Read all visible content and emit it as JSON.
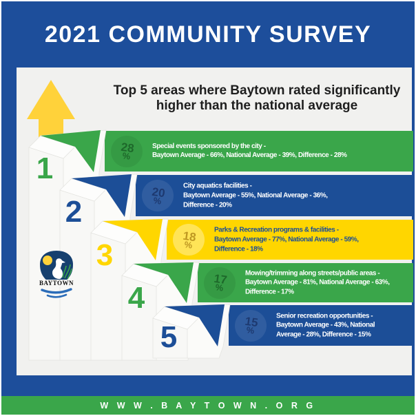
{
  "header": {
    "title": "2021 COMMUNITY SURVEY"
  },
  "intro": {
    "line1": "Top 5 areas where Baytown rated significantly",
    "line2": "higher than the national average"
  },
  "items": [
    {
      "rank": "1",
      "color": "green",
      "badge_value": "28",
      "badge_symbol": "%",
      "lines": [
        "Special events sponsored by the city -",
        "Baytown Average - 66%, National Average - 39%, Difference - 28%"
      ]
    },
    {
      "rank": "2",
      "color": "blue",
      "badge_value": "20",
      "badge_symbol": "%",
      "lines": [
        "City aquatics facilities -",
        "Baytown Average - 55%, National Average - 36%,",
        "Difference - 20%"
      ]
    },
    {
      "rank": "3",
      "color": "yellow",
      "badge_value": "18",
      "badge_symbol": "%",
      "lines": [
        "Parks & Recreation programs & facilities -",
        "Baytown Average - 77%, National Average - 59%,",
        "Difference - 18%"
      ]
    },
    {
      "rank": "4",
      "color": "green",
      "badge_value": "17",
      "badge_symbol": "%",
      "lines": [
        "Mowing/trimming along streets/public areas -",
        "Baytown Average - 81%, National Average - 63%,",
        "Difference - 17%"
      ]
    },
    {
      "rank": "5",
      "color": "blue",
      "badge_value": "15",
      "badge_symbol": "%",
      "lines": [
        "Senior recreation opportunities -",
        "Baytown Average - 43%, National",
        "Average - 28%, Difference - 15%"
      ]
    }
  ],
  "logo": {
    "text": "BAYTOWN"
  },
  "footer": {
    "url": "W W W . B A Y T O W N . O R G"
  },
  "colors": {
    "brand_blue": "#1d4e9b",
    "green": "#3aa64a",
    "yellow": "#ffd600",
    "panel_bg": "#f1f1ef",
    "white": "#ffffff"
  }
}
